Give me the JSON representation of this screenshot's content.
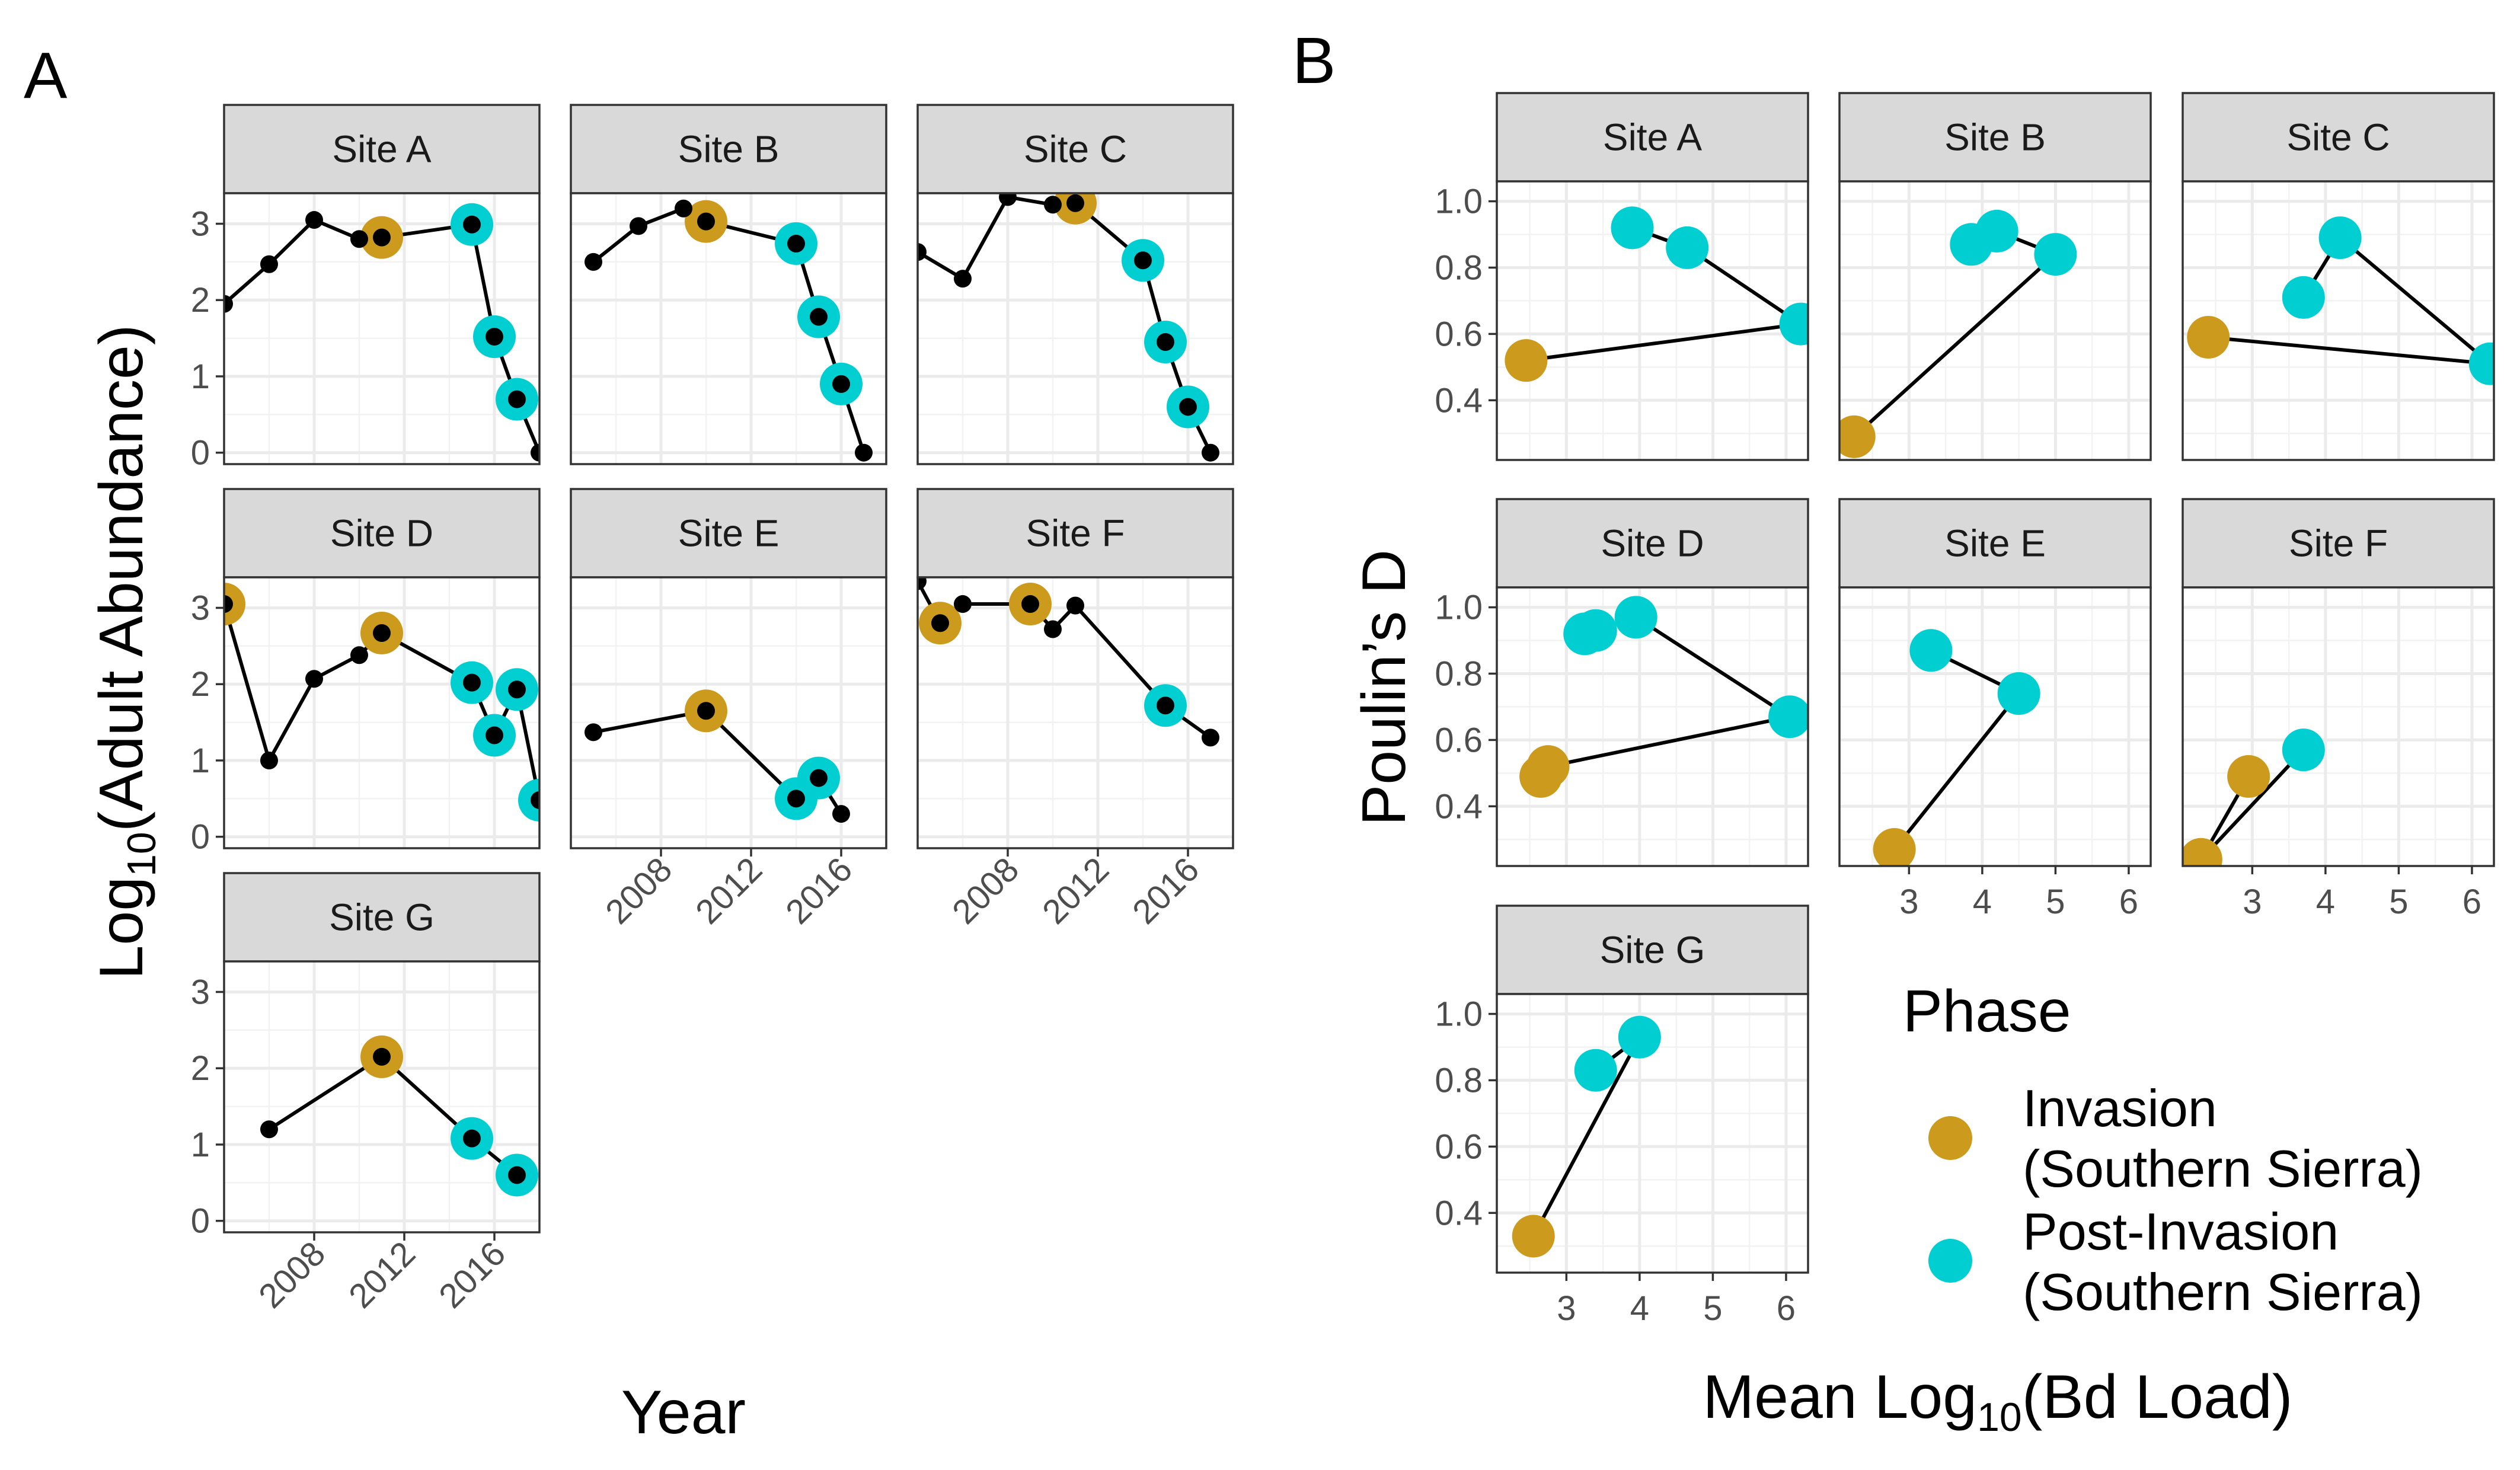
{
  "figure": {
    "panel_a_label": "A",
    "panel_b_label": "B",
    "colors": {
      "Invasion": "#CC9A1C",
      "Post-Invasion": "#00CED1",
      "line": "#000000",
      "point": "#000000"
    }
  },
  "chart_data": [
    {
      "type": "line",
      "panel": "A",
      "xlabel": "Year",
      "ylabel_prefix": "Log",
      "ylabel_sub": "10",
      "ylabel_suffix": "(Adult Abundance)",
      "xlim": [
        2004,
        2018
      ],
      "ylim": [
        -0.15,
        3.4
      ],
      "x_ticks": [
        2008,
        2012,
        2016
      ],
      "y_ticks": [
        0,
        1,
        2,
        3
      ],
      "facets": [
        {
          "site": "Site A",
          "points": [
            {
              "x": 2004,
              "y": 1.95
            },
            {
              "x": 2006,
              "y": 2.47
            },
            {
              "x": 2008,
              "y": 3.05
            },
            {
              "x": 2010,
              "y": 2.8
            },
            {
              "x": 2011,
              "y": 2.82,
              "phase": "Invasion"
            },
            {
              "x": 2015,
              "y": 2.99,
              "phase": "Post-Invasion"
            },
            {
              "x": 2016,
              "y": 1.52,
              "phase": "Post-Invasion"
            },
            {
              "x": 2017,
              "y": 0.7,
              "phase": "Post-Invasion"
            },
            {
              "x": 2018,
              "y": 0.0
            }
          ]
        },
        {
          "site": "Site B",
          "points": [
            {
              "x": 2005,
              "y": 2.5
            },
            {
              "x": 2007,
              "y": 2.97
            },
            {
              "x": 2009,
              "y": 3.2
            },
            {
              "x": 2010,
              "y": 3.03,
              "phase": "Invasion"
            },
            {
              "x": 2014,
              "y": 2.74,
              "phase": "Post-Invasion"
            },
            {
              "x": 2015,
              "y": 1.78,
              "phase": "Post-Invasion"
            },
            {
              "x": 2016,
              "y": 0.9,
              "phase": "Post-Invasion"
            },
            {
              "x": 2017,
              "y": 0.0
            }
          ]
        },
        {
          "site": "Site C",
          "points": [
            {
              "x": 2004,
              "y": 2.63
            },
            {
              "x": 2006,
              "y": 2.28
            },
            {
              "x": 2008,
              "y": 3.35
            },
            {
              "x": 2010,
              "y": 3.25
            },
            {
              "x": 2011,
              "y": 3.27,
              "phase": "Invasion"
            },
            {
              "x": 2014,
              "y": 2.52,
              "phase": "Post-Invasion"
            },
            {
              "x": 2015,
              "y": 1.45,
              "phase": "Post-Invasion"
            },
            {
              "x": 2016,
              "y": 0.6,
              "phase": "Post-Invasion"
            },
            {
              "x": 2017,
              "y": 0.0
            }
          ]
        },
        {
          "site": "Site D",
          "points": [
            {
              "x": 2004,
              "y": 3.05,
              "phase": "Invasion"
            },
            {
              "x": 2006,
              "y": 1.0
            },
            {
              "x": 2008,
              "y": 2.07
            },
            {
              "x": 2010,
              "y": 2.38
            },
            {
              "x": 2011,
              "y": 2.67,
              "phase": "Invasion"
            },
            {
              "x": 2015,
              "y": 2.02,
              "phase": "Post-Invasion"
            },
            {
              "x": 2016,
              "y": 1.33,
              "phase": "Post-Invasion"
            },
            {
              "x": 2017,
              "y": 1.93,
              "phase": "Post-Invasion"
            },
            {
              "x": 2018,
              "y": 0.48,
              "phase": "Post-Invasion"
            }
          ]
        },
        {
          "site": "Site E",
          "points": [
            {
              "x": 2005,
              "y": 1.37
            },
            {
              "x": 2010,
              "y": 1.65,
              "phase": "Invasion"
            },
            {
              "x": 2014,
              "y": 0.5,
              "phase": "Post-Invasion"
            },
            {
              "x": 2015,
              "y": 0.77,
              "phase": "Post-Invasion"
            },
            {
              "x": 2016,
              "y": 0.3
            }
          ]
        },
        {
          "site": "Site F",
          "points": [
            {
              "x": 2004,
              "y": 3.35
            },
            {
              "x": 2005,
              "y": 2.8,
              "phase": "Invasion"
            },
            {
              "x": 2006,
              "y": 3.05
            },
            {
              "x": 2009,
              "y": 3.05,
              "phase": "Invasion"
            },
            {
              "x": 2010,
              "y": 2.72
            },
            {
              "x": 2011,
              "y": 3.03
            },
            {
              "x": 2015,
              "y": 1.72,
              "phase": "Post-Invasion"
            },
            {
              "x": 2017,
              "y": 1.3
            }
          ]
        },
        {
          "site": "Site G",
          "points": [
            {
              "x": 2006,
              "y": 1.2
            },
            {
              "x": 2011,
              "y": 2.15,
              "phase": "Invasion"
            },
            {
              "x": 2015,
              "y": 1.08,
              "phase": "Post-Invasion"
            },
            {
              "x": 2017,
              "y": 0.6,
              "phase": "Post-Invasion"
            }
          ]
        }
      ]
    },
    {
      "type": "line",
      "panel": "B",
      "xlabel_prefix": "Mean Log",
      "xlabel_sub": "10",
      "xlabel_suffix": "(Bd Load)",
      "ylabel": "Poulin’s D",
      "xlim": [
        2.05,
        6.3
      ],
      "ylim": [
        0.22,
        1.06
      ],
      "x_ticks": [
        3,
        4,
        5,
        6
      ],
      "y_ticks": [
        0.4,
        0.6,
        0.8,
        1.0
      ],
      "y_tick_labels": [
        "0.4",
        "0.6",
        "0.8",
        "1.0"
      ],
      "facets": [
        {
          "site": "Site A",
          "points": [
            {
              "x": 2.45,
              "y": 0.52,
              "phase": "Invasion"
            },
            {
              "x": 6.2,
              "y": 0.63,
              "phase": "Post-Invasion"
            },
            {
              "x": 4.65,
              "y": 0.86,
              "phase": "Post-Invasion"
            },
            {
              "x": 3.9,
              "y": 0.92,
              "phase": "Post-Invasion"
            }
          ]
        },
        {
          "site": "Site B",
          "points": [
            {
              "x": 2.25,
              "y": 0.29,
              "phase": "Invasion"
            },
            {
              "x": 5.0,
              "y": 0.84,
              "phase": "Post-Invasion"
            },
            {
              "x": 4.2,
              "y": 0.91,
              "phase": "Post-Invasion"
            },
            {
              "x": 3.85,
              "y": 0.87,
              "phase": "Post-Invasion"
            }
          ]
        },
        {
          "site": "Site C",
          "points": [
            {
              "x": 2.4,
              "y": 0.59,
              "phase": "Invasion"
            },
            {
              "x": 6.25,
              "y": 0.51,
              "phase": "Post-Invasion"
            },
            {
              "x": 4.2,
              "y": 0.89,
              "phase": "Post-Invasion"
            },
            {
              "x": 3.7,
              "y": 0.71,
              "phase": "Post-Invasion"
            }
          ]
        },
        {
          "site": "Site D",
          "points": [
            {
              "x": 2.65,
              "y": 0.49,
              "phase": "Invasion"
            },
            {
              "x": 2.75,
              "y": 0.52,
              "phase": "Invasion"
            },
            {
              "x": 6.05,
              "y": 0.67,
              "phase": "Post-Invasion"
            },
            {
              "x": 3.95,
              "y": 0.97,
              "phase": "Post-Invasion"
            },
            {
              "x": 3.4,
              "y": 0.93,
              "phase": "Post-Invasion"
            },
            {
              "x": 3.25,
              "y": 0.92,
              "phase": "Post-Invasion"
            }
          ]
        },
        {
          "site": "Site E",
          "points": [
            {
              "x": 2.8,
              "y": 0.27,
              "phase": "Invasion"
            },
            {
              "x": 4.5,
              "y": 0.74,
              "phase": "Post-Invasion"
            },
            {
              "x": 3.3,
              "y": 0.87,
              "phase": "Post-Invasion"
            }
          ]
        },
        {
          "site": "Site F",
          "points": [
            {
              "x": 2.95,
              "y": 0.49,
              "phase": "Invasion"
            },
            {
              "x": 2.3,
              "y": 0.24,
              "phase": "Invasion"
            },
            {
              "x": 3.7,
              "y": 0.57,
              "phase": "Post-Invasion"
            }
          ]
        },
        {
          "site": "Site G",
          "points": [
            {
              "x": 2.55,
              "y": 0.33,
              "phase": "Invasion"
            },
            {
              "x": 4.0,
              "y": 0.93,
              "phase": "Post-Invasion"
            },
            {
              "x": 3.4,
              "y": 0.83,
              "phase": "Post-Invasion"
            }
          ]
        }
      ]
    }
  ],
  "legend": {
    "title": "Phase",
    "placement": "bottom-right",
    "items": [
      {
        "key": "Invasion",
        "line1": "Invasion",
        "line2": "(Southern Sierra)",
        "color": "#CC9A1C"
      },
      {
        "key": "Post-Invasion",
        "line1": "Post-Invasion",
        "line2": "(Southern Sierra)",
        "color": "#00CED1"
      }
    ]
  }
}
